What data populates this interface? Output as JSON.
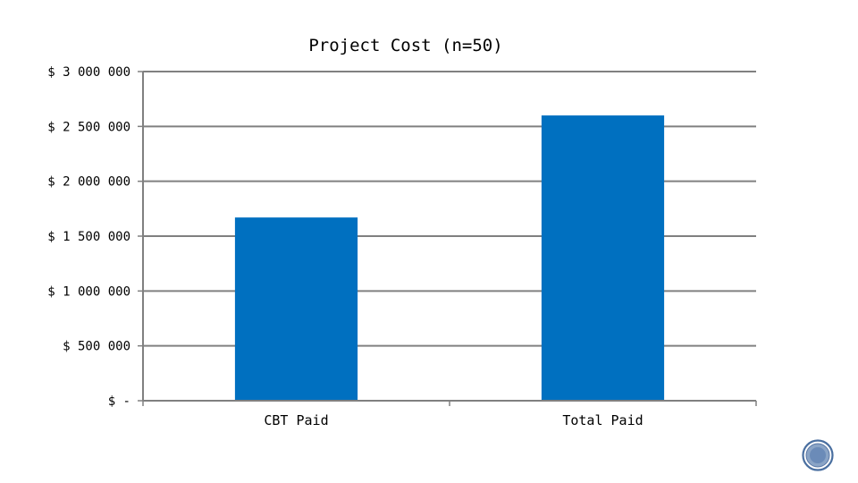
{
  "chart_data": {
    "type": "bar",
    "title": "Project Cost (n=50)",
    "categories": [
      "CBT Paid",
      "Total Paid"
    ],
    "values": [
      1670000,
      2600000
    ],
    "ylim": [
      0,
      3000000
    ],
    "yticks": [
      0,
      500000,
      1000000,
      1500000,
      2000000,
      2500000,
      3000000
    ],
    "ytick_labels": [
      "$ -",
      "$ 500 000",
      "$ 1 000 000",
      "$ 1 500 000",
      "$ 2 000 000",
      "$ 2 500 000",
      "$ 3 000 000"
    ],
    "xlabel": "",
    "ylabel": "",
    "grid": true,
    "legend": "none",
    "bar_color": "#0070C0",
    "grid_color": "#808080"
  },
  "decoration": {
    "badge_icon": "circular-badge-icon",
    "badge_color": "#4a6fa0"
  }
}
